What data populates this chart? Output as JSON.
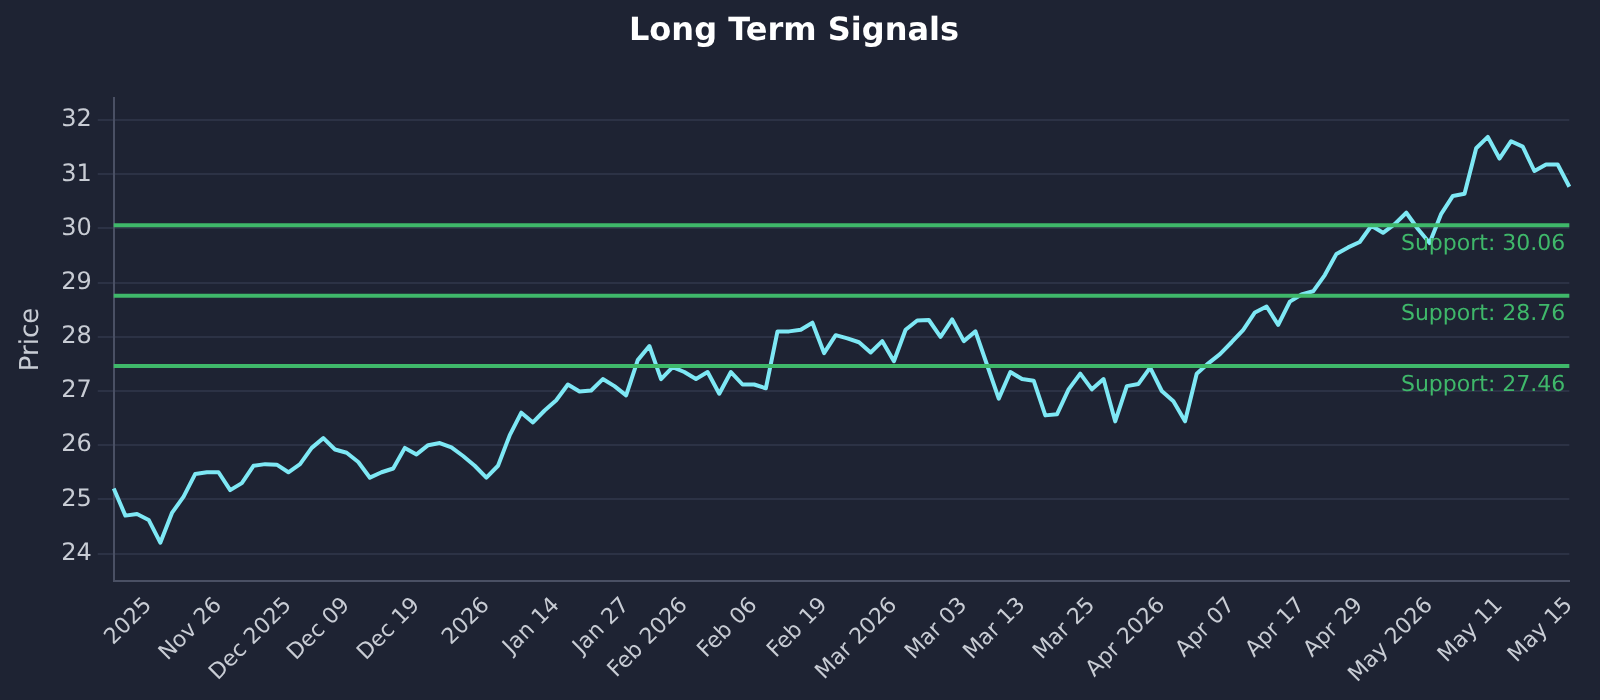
{
  "chart_data": {
    "type": "line",
    "title": "Long Term Signals",
    "ylabel": "Price",
    "categories": [
      null,
      null,
      null,
      "2025",
      null,
      null,
      null,
      null,
      null,
      "Nov 26",
      null,
      null,
      null,
      null,
      null,
      "Dec 2025",
      null,
      null,
      null,
      null,
      "Dec 09",
      null,
      null,
      null,
      null,
      null,
      "Dec 19",
      null,
      null,
      null,
      null,
      null,
      "2026",
      null,
      null,
      null,
      null,
      null,
      "Jan 14",
      null,
      null,
      null,
      null,
      null,
      "Jan 27",
      null,
      null,
      null,
      null,
      "Feb 2026",
      null,
      null,
      null,
      null,
      null,
      "Feb 06",
      null,
      null,
      null,
      null,
      null,
      "Feb 19",
      null,
      null,
      null,
      null,
      null,
      "Mar 2026",
      null,
      null,
      null,
      null,
      null,
      "Mar 03",
      null,
      null,
      null,
      null,
      "Mar 13",
      null,
      null,
      null,
      null,
      null,
      "Mar 25",
      null,
      null,
      null,
      null,
      null,
      "Apr 2026",
      null,
      null,
      null,
      null,
      null,
      "Apr 07",
      null,
      null,
      null,
      null,
      null,
      "Apr 17",
      null,
      null,
      null,
      null,
      "Apr 29",
      null,
      null,
      null,
      null,
      null,
      "May 2026",
      null,
      null,
      null,
      null,
      null,
      "May 11",
      null,
      null,
      null,
      null,
      null,
      "May 15"
    ],
    "series": [
      {
        "color": "#7ee8f5",
        "values": [
          25.2,
          24.7,
          24.73,
          24.62,
          24.2,
          24.75,
          25.05,
          25.47,
          25.5,
          25.5,
          25.17,
          25.3,
          25.62,
          25.65,
          25.64,
          25.5,
          25.65,
          25.95,
          26.13,
          25.92,
          25.86,
          25.69,
          25.4,
          25.5,
          25.57,
          25.95,
          25.83,
          26.0,
          26.04,
          25.96,
          25.8,
          25.62,
          25.4,
          25.62,
          26.18,
          26.6,
          26.42,
          26.64,
          26.83,
          27.12,
          26.99,
          27.01,
          27.22,
          27.09,
          26.92,
          27.57,
          27.83,
          27.22,
          27.44,
          27.35,
          27.22,
          27.35,
          26.95,
          27.35,
          27.12,
          27.12,
          27.05,
          28.1,
          28.1,
          28.13,
          28.26,
          27.7,
          28.03,
          27.97,
          27.9,
          27.71,
          27.92,
          27.55,
          28.13,
          28.3,
          28.31,
          28.0,
          28.32,
          27.92,
          28.1,
          27.48,
          26.86,
          27.35,
          27.22,
          27.19,
          26.55,
          26.57,
          27.03,
          27.32,
          27.03,
          27.22,
          26.44,
          27.09,
          27.13,
          27.43,
          27.0,
          26.81,
          26.44,
          27.32,
          27.51,
          27.68,
          27.9,
          28.13,
          28.45,
          28.56,
          28.22,
          28.65,
          28.78,
          28.84,
          29.14,
          29.53,
          29.65,
          29.75,
          30.05,
          29.92,
          30.08,
          30.29,
          29.99,
          29.73,
          30.27,
          30.6,
          30.64,
          31.48,
          31.69,
          31.29,
          31.61,
          31.51,
          31.06,
          31.18,
          31.18,
          30.77
        ]
      }
    ],
    "ylim": [
      23.5,
      32.4
    ],
    "yticks": [
      24,
      25,
      26,
      27,
      28,
      29,
      30,
      31,
      32
    ],
    "ref_lines": [
      {
        "axis": "y",
        "value": 30.06,
        "label": "Support: 30.06",
        "color": "#3fb86a"
      },
      {
        "axis": "y",
        "value": 28.76,
        "label": "Support: 28.76",
        "color": "#3fb86a"
      },
      {
        "axis": "y",
        "value": 27.46,
        "label": "Support: 27.46",
        "color": "#3fb86a"
      }
    ],
    "grid": "y",
    "legend": false,
    "marker": "none",
    "line_style": "solid"
  }
}
